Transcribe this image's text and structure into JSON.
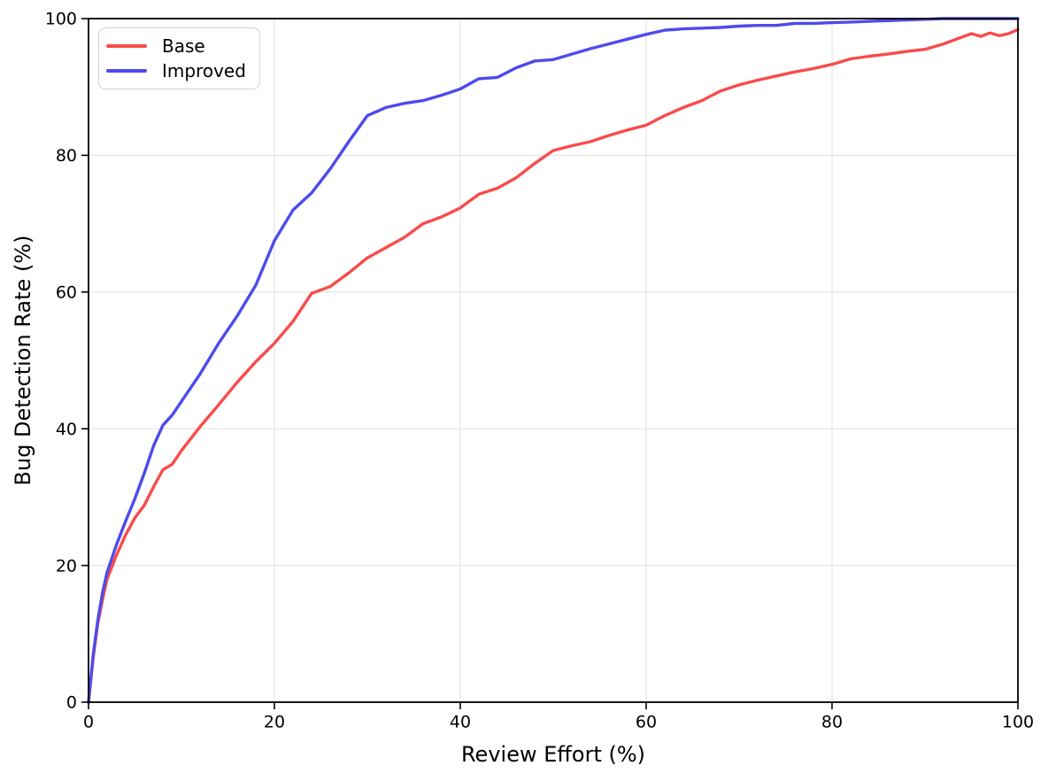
{
  "figure": {
    "background": "#ffffff",
    "grid_color": "#e8e8e8",
    "spine_color": "#000000",
    "tick_color": "#000000"
  },
  "chart_data": {
    "type": "line",
    "title": "",
    "xlabel": "Review Effort (%)",
    "ylabel": "Bug Detection Rate (%)",
    "xlim": [
      0,
      100
    ],
    "ylim": [
      0,
      100
    ],
    "xticks": [
      0,
      20,
      40,
      60,
      80,
      100
    ],
    "yticks": [
      0,
      20,
      40,
      60,
      80,
      100
    ],
    "grid": true,
    "legend_position": "upper left",
    "x": [
      0,
      0.5,
      1,
      1.5,
      2,
      3,
      4,
      5,
      6,
      7,
      8,
      9,
      10,
      12,
      14,
      16,
      18,
      20,
      22,
      24,
      26,
      28,
      30,
      32,
      34,
      36,
      38,
      40,
      42,
      44,
      46,
      48,
      50,
      52,
      54,
      56,
      58,
      60,
      62,
      64,
      66,
      68,
      70,
      72,
      74,
      76,
      78,
      80,
      82,
      84,
      86,
      88,
      90,
      92,
      94,
      95,
      96,
      97,
      98,
      99,
      100
    ],
    "series": [
      {
        "name": "Base",
        "color": "#f94b4b",
        "values": [
          0,
          6.5,
          11.5,
          15,
          18,
          21.5,
          24.5,
          27,
          28.8,
          31.5,
          34,
          34.8,
          36.8,
          40.3,
          43.5,
          46.8,
          49.8,
          52.5,
          55.7,
          59.8,
          60.8,
          62.8,
          65,
          66.5,
          68,
          70,
          71,
          72.3,
          74.3,
          75.2,
          76.7,
          78.8,
          80.7,
          81.4,
          82,
          82.9,
          83.7,
          84.4,
          85.8,
          87,
          88,
          89.4,
          90.3,
          91,
          91.6,
          92.2,
          92.7,
          93.3,
          94.1,
          94.5,
          94.8,
          95.2,
          95.5,
          96.3,
          97.3,
          97.8,
          97.4,
          97.9,
          97.5,
          97.8,
          98.4
        ]
      },
      {
        "name": "Improved",
        "color": "#4c4beb",
        "values": [
          0,
          7,
          12,
          16,
          19,
          23,
          26.5,
          29.8,
          33.5,
          37.5,
          40.5,
          42,
          44,
          48,
          52.5,
          56.5,
          61,
          67.5,
          72,
          74.5,
          78,
          82,
          85.8,
          87,
          87.6,
          88,
          88.8,
          89.7,
          91.2,
          91.4,
          92.8,
          93.8,
          94,
          94.8,
          95.6,
          96.3,
          97,
          97.7,
          98.3,
          98.5,
          98.6,
          98.7,
          98.9,
          99,
          99,
          99.3,
          99.3,
          99.4,
          99.5,
          99.6,
          99.7,
          99.8,
          99.9,
          100,
          100,
          100,
          100,
          100,
          100,
          100,
          100
        ]
      }
    ]
  }
}
